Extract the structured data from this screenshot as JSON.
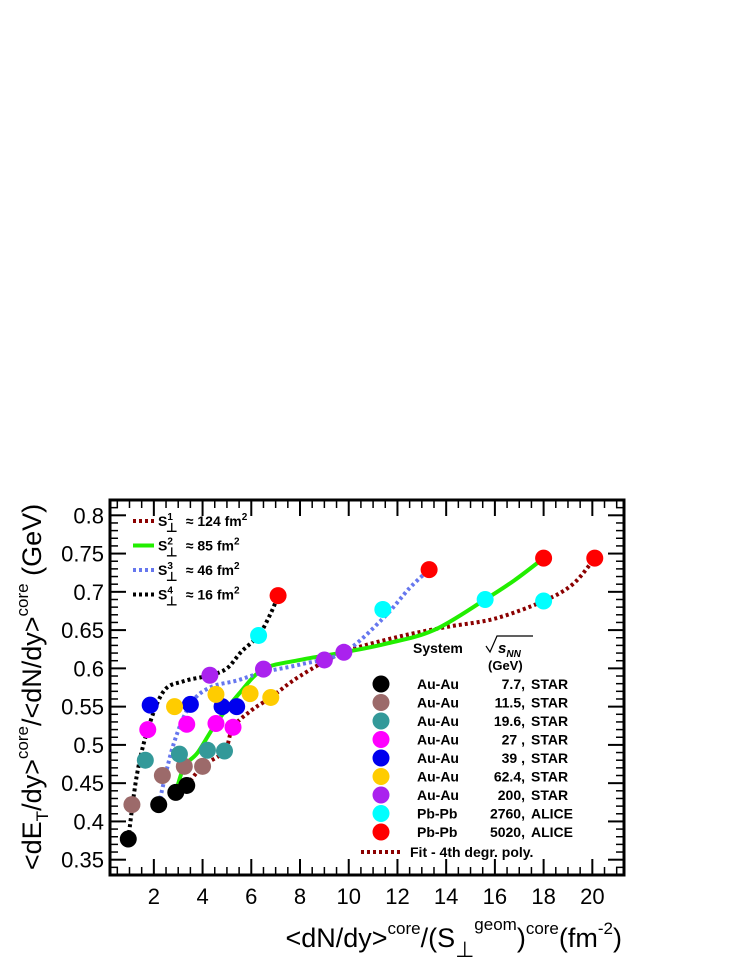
{
  "chart_data": {
    "type": "scatter",
    "xlabel": {
      "prefix": "<dN/dy>",
      "sup1": "core",
      "mid": "/(S",
      "sub": "⊥",
      "sup2": "geom",
      "close": ")",
      "sup3": "core",
      "unit_open": "(fm",
      "unit_exp": "-2",
      "unit_close": ")"
    },
    "ylabel": {
      "part1": "<dE",
      "sub": "T",
      "part2": "/dy>",
      "sup1": "core",
      "part3": "/<dN/dy>",
      "sup2": "core",
      "unit": " (GeV)"
    },
    "xlim": [
      0.2,
      21.3
    ],
    "ylim": [
      0.33,
      0.82
    ],
    "xticks": [
      2,
      4,
      6,
      8,
      10,
      12,
      14,
      16,
      18,
      20
    ],
    "xtick_labels": [
      "2",
      "4",
      "6",
      "8",
      "10",
      "12",
      "14",
      "16",
      "18",
      "20"
    ],
    "yticks": [
      0.35,
      0.4,
      0.45,
      0.5,
      0.55,
      0.6,
      0.65,
      0.7,
      0.75,
      0.8
    ],
    "ytick_labels": [
      "0.35",
      "0.4",
      "0.45",
      "0.5",
      "0.55",
      "0.6",
      "0.65",
      "0.7",
      "0.75",
      "0.8"
    ],
    "grid": false,
    "legend_curves": [
      {
        "sup": "1",
        "approx": "≈ 124 fm",
        "exp": "2",
        "color": "#8b0000",
        "dash": "dotted"
      },
      {
        "sup": "2",
        "approx": "≈  85 fm",
        "exp": "2",
        "color": "#22ee00",
        "dash": "solid"
      },
      {
        "sup": "3",
        "approx": "≈ 46 fm",
        "exp": "2",
        "color": "#6677ee",
        "dash": "dotted"
      },
      {
        "sup": "4",
        "approx": "≈ 16 fm",
        "exp": "2",
        "color": "#000000",
        "dash": "dotted"
      }
    ],
    "legend_symbol": "S",
    "legend_symbol_sub": "⊥",
    "system_header": "System",
    "energy_header": "s",
    "energy_header_sub": "NN",
    "energy_unit": "(GeV)",
    "series": [
      {
        "system": "Au-Au",
        "energy": "7.7,",
        "experiment": "STAR",
        "color": "#000000",
        "x": [
          0.95,
          2.2,
          2.9,
          3.35
        ],
        "y": [
          0.377,
          0.422,
          0.438,
          0.447
        ]
      },
      {
        "system": "Au-Au",
        "energy": "11.5,",
        "experiment": "STAR",
        "color": "#9c6a6a",
        "x": [
          1.1,
          2.35,
          3.25,
          4.0
        ],
        "y": [
          0.422,
          0.46,
          0.472,
          0.472
        ]
      },
      {
        "system": "Au-Au",
        "energy": "19.6,",
        "experiment": "STAR",
        "color": "#339999",
        "x": [
          1.65,
          3.05,
          4.2,
          4.9
        ],
        "y": [
          0.48,
          0.488,
          0.493,
          0.492
        ]
      },
      {
        "system": "Au-Au",
        "energy": "27 ,",
        "experiment": "STAR",
        "color": "#ff00ff",
        "x": [
          1.75,
          3.35,
          4.55,
          5.25
        ],
        "y": [
          0.52,
          0.527,
          0.528,
          0.523
        ]
      },
      {
        "system": "Au-Au",
        "energy": "39 ,",
        "experiment": "STAR",
        "color": "#0000ee",
        "x": [
          1.85,
          3.5,
          4.8,
          5.4
        ],
        "y": [
          0.552,
          0.553,
          0.55,
          0.55
        ]
      },
      {
        "system": "Au-Au",
        "energy": "62.4,",
        "experiment": "STAR",
        "color": "#ffcc00",
        "x": [
          2.85,
          4.55,
          5.95,
          6.8
        ],
        "y": [
          0.55,
          0.566,
          0.567,
          0.562
        ]
      },
      {
        "system": "Au-Au",
        "energy": "200,",
        "experiment": "STAR",
        "color": "#aa22ee",
        "x": [
          4.3,
          6.5,
          9.0,
          9.8
        ],
        "y": [
          0.591,
          0.599,
          0.611,
          0.621
        ]
      },
      {
        "system": "Pb-Pb",
        "energy": "2760,",
        "experiment": "ALICE",
        "color": "#00ffff",
        "x": [
          6.3,
          11.4,
          15.6,
          18.0
        ],
        "y": [
          0.643,
          0.677,
          0.69,
          0.688
        ]
      },
      {
        "system": "Pb-Pb",
        "energy": "5020,",
        "experiment": "ALICE",
        "color": "#ff0000",
        "x": [
          7.1,
          13.3,
          18.0,
          20.1
        ],
        "y": [
          0.695,
          0.729,
          0.744,
          0.744
        ]
      }
    ],
    "fit_label": "Fit - 4th degr. poly.",
    "fit_color": "#8b0000",
    "fit_curves": [
      {
        "name": "S1",
        "color": "#8b0000",
        "dash": "dotted",
        "x": [
          3.35,
          4.0,
          4.9,
          5.25,
          6.0,
          6.8,
          8.0,
          9.8,
          12.0,
          14.0,
          16.0,
          18.0,
          19.2,
          20.1
        ],
        "y": [
          0.447,
          0.472,
          0.492,
          0.523,
          0.545,
          0.562,
          0.59,
          0.621,
          0.641,
          0.654,
          0.665,
          0.688,
          0.71,
          0.744
        ]
      },
      {
        "name": "S2",
        "color": "#22ee00",
        "dash": "solid",
        "x": [
          2.9,
          3.25,
          3.8,
          4.55,
          5.5,
          6.5,
          8.0,
          9.8,
          11.5,
          13.5,
          15.6,
          16.8,
          18.0
        ],
        "y": [
          0.438,
          0.472,
          0.49,
          0.528,
          0.567,
          0.599,
          0.611,
          0.621,
          0.632,
          0.65,
          0.69,
          0.715,
          0.744
        ]
      },
      {
        "name": "S3",
        "color": "#6677ee",
        "dash": "dotted",
        "x": [
          2.2,
          2.8,
          3.5,
          4.3,
          5.4,
          6.5,
          8.0,
          9.8,
          11.4,
          12.5,
          13.3
        ],
        "y": [
          0.422,
          0.5,
          0.553,
          0.575,
          0.584,
          0.595,
          0.605,
          0.621,
          0.665,
          0.705,
          0.729
        ]
      },
      {
        "name": "S4",
        "color": "#000000",
        "dash": "dotted",
        "x": [
          0.95,
          1.3,
          1.75,
          2.4,
          3.2,
          4.3,
          5.0,
          5.6,
          6.3,
          6.8,
          7.1
        ],
        "y": [
          0.377,
          0.46,
          0.52,
          0.57,
          0.583,
          0.591,
          0.6,
          0.622,
          0.643,
          0.672,
          0.695
        ]
      }
    ]
  }
}
